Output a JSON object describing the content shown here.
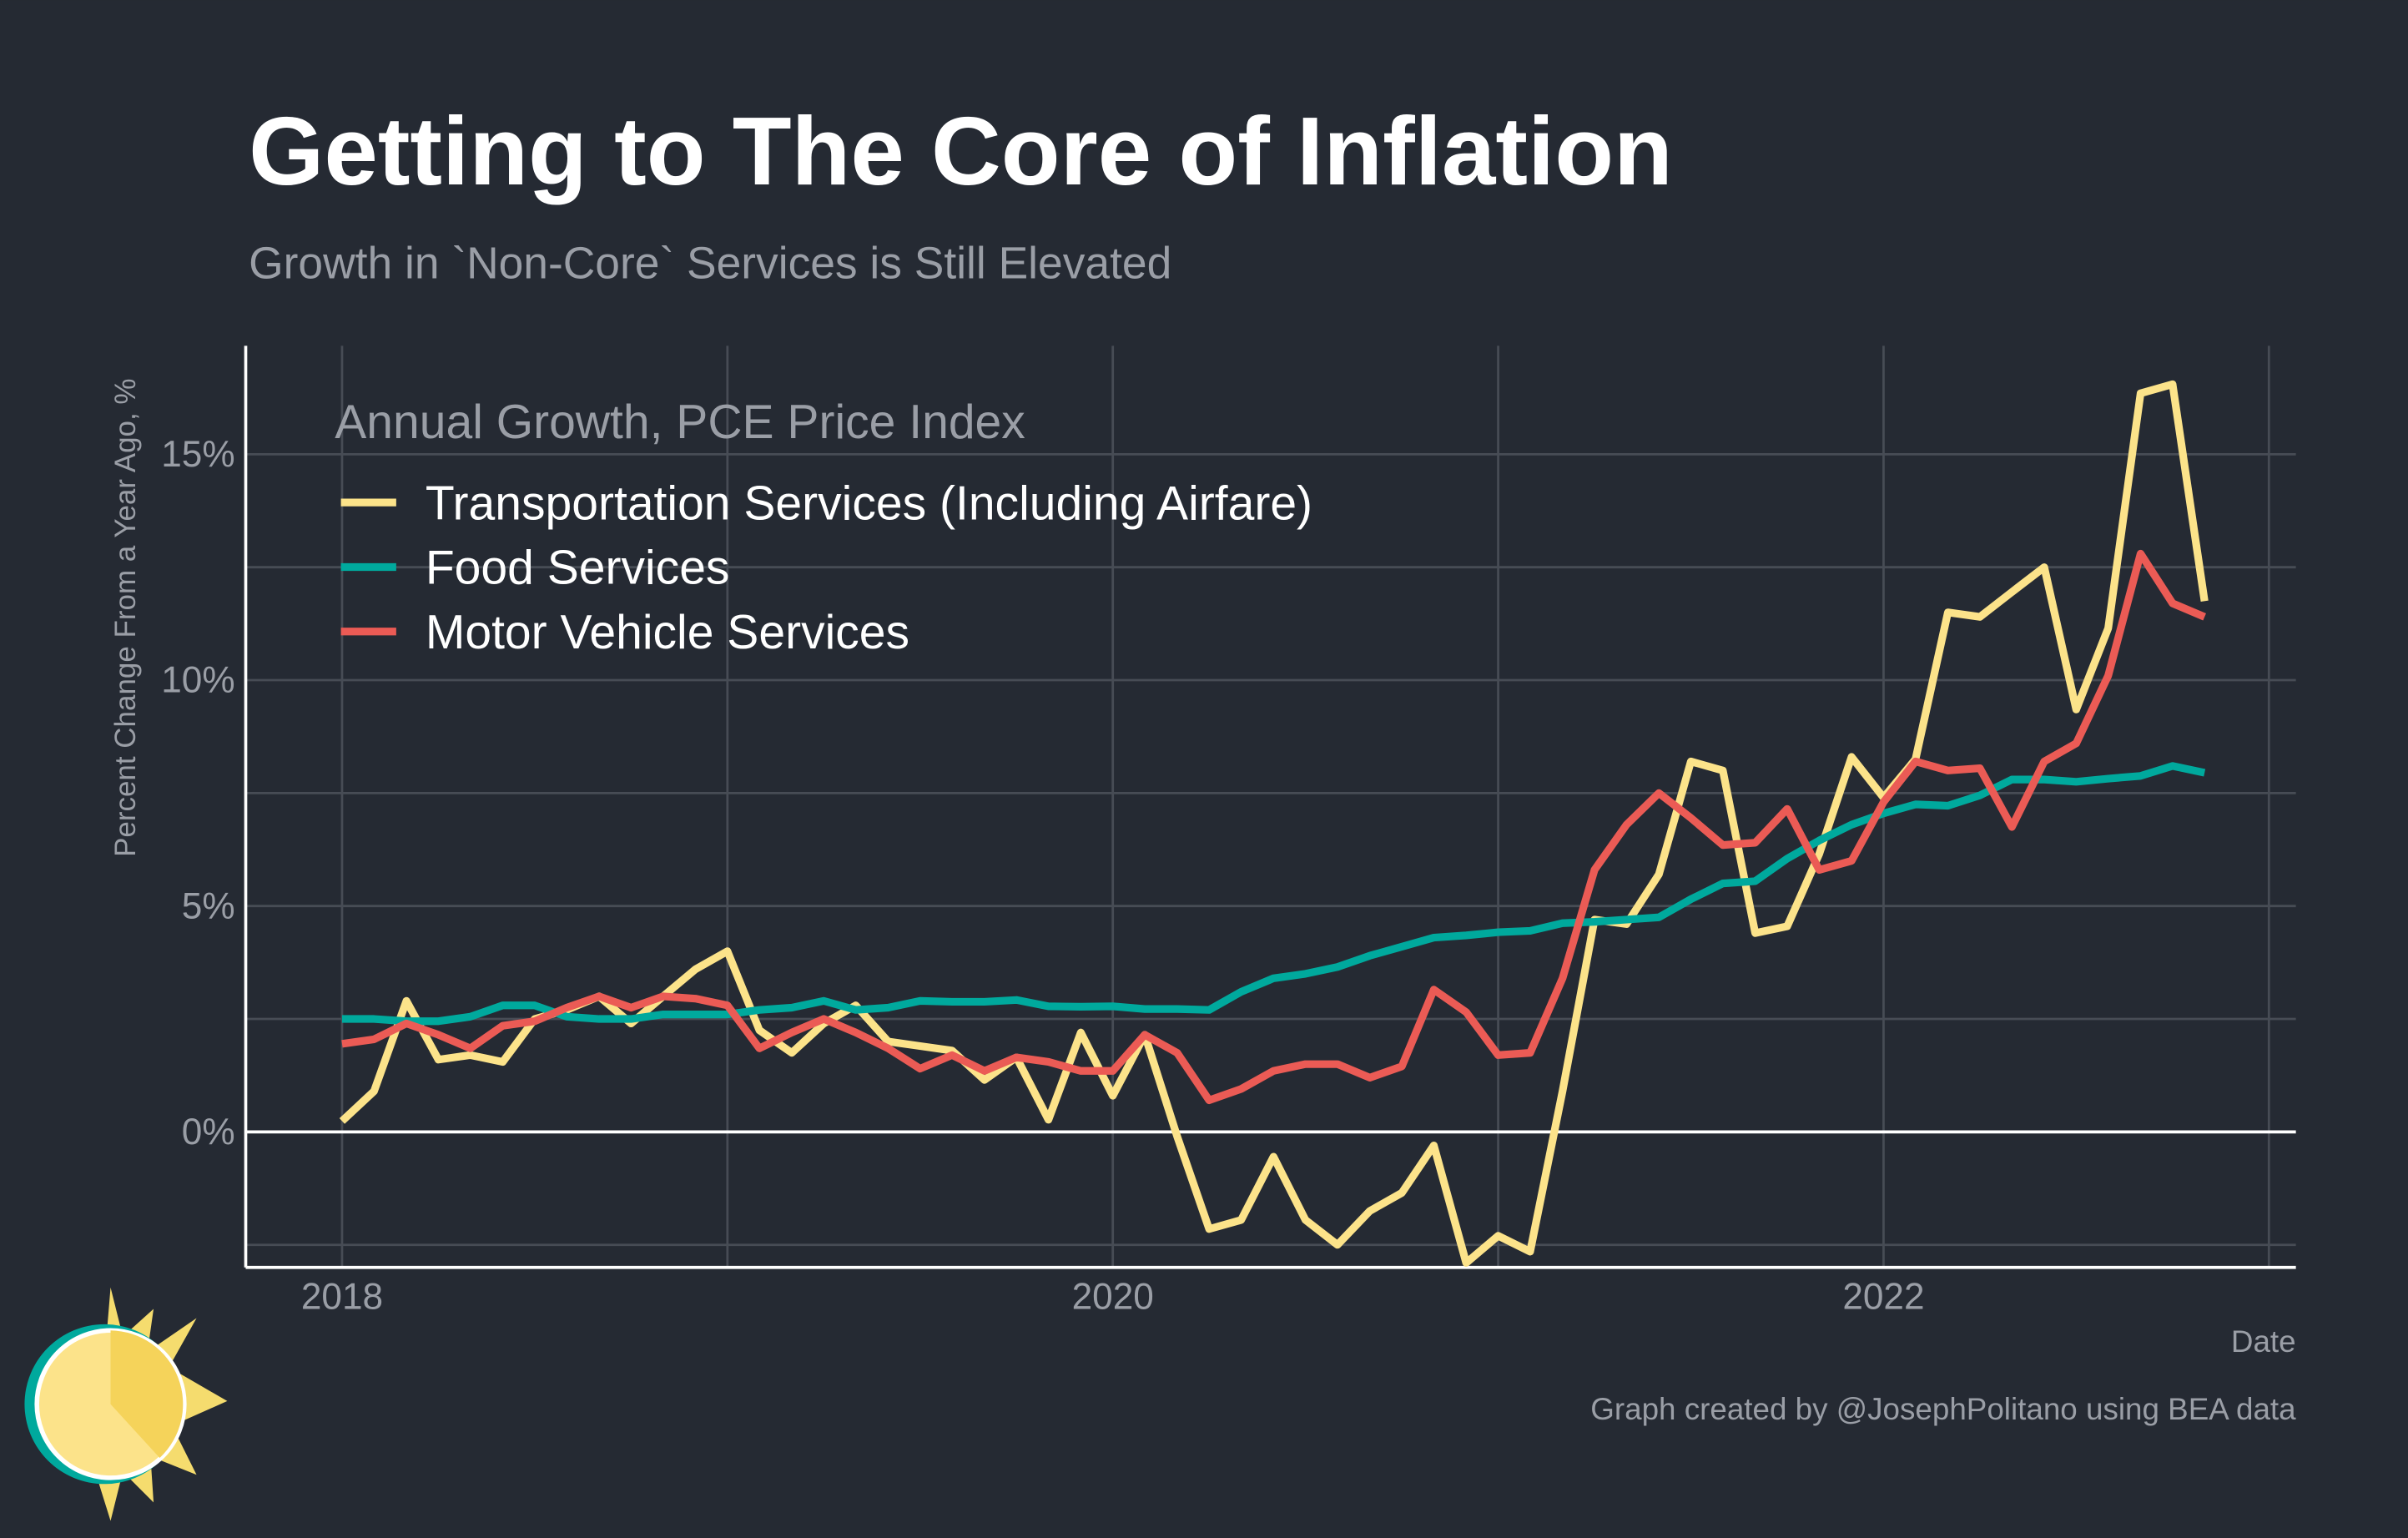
{
  "chart_data": {
    "type": "line",
    "title": "Getting to The Core of Inflation",
    "subtitle": "Growth in `Non-Core` Services is Still Elevated",
    "y_label": "Percent Change From a Year Ago, %",
    "x_label": "Date",
    "legend_title": "Annual Growth, PCE Price Index",
    "caption": "Graph created by @JosephPolitano using BEA data",
    "legend": "top-left",
    "grid": true,
    "x": [
      2018,
      2018.083,
      2018.167,
      2018.25,
      2018.333,
      2018.417,
      2018.5,
      2018.583,
      2018.667,
      2018.75,
      2018.833,
      2018.917,
      2019,
      2019.083,
      2019.167,
      2019.25,
      2019.333,
      2019.417,
      2019.5,
      2019.583,
      2019.667,
      2019.75,
      2019.833,
      2019.917,
      2020,
      2020.083,
      2020.167,
      2020.25,
      2020.333,
      2020.417,
      2020.5,
      2020.583,
      2020.667,
      2020.75,
      2020.833,
      2020.917,
      2021,
      2021.083,
      2021.167,
      2021.25,
      2021.333,
      2021.417,
      2021.5,
      2021.583,
      2021.667,
      2021.75,
      2021.833,
      2021.917,
      2022,
      2022.083,
      2022.167,
      2022.25,
      2022.333,
      2022.417,
      2022.5,
      2022.583,
      2022.667,
      2022.75,
      2022.833
    ],
    "series": [
      {
        "name": "Transportation Services (Including Airfare)",
        "color": "#fce38a",
        "values": [
          0.24,
          0.9,
          2.9,
          1.6,
          1.7,
          1.55,
          2.5,
          2.7,
          3.0,
          2.4,
          3.0,
          3.6,
          4.0,
          2.25,
          1.75,
          2.4,
          2.8,
          2.0,
          1.9,
          1.8,
          1.15,
          1.65,
          0.27,
          2.2,
          0.8,
          2.15,
          -0.1,
          -2.15,
          -1.95,
          -0.55,
          -1.95,
          -2.5,
          -1.75,
          -1.35,
          -0.3,
          -2.9,
          -2.3,
          -2.65,
          0.9,
          4.7,
          4.6,
          5.7,
          8.2,
          8.0,
          4.4,
          4.55,
          6.15,
          8.3,
          7.4,
          8.25,
          11.5,
          11.4,
          11.95,
          12.5,
          9.35,
          11.15,
          16.35,
          16.55,
          11.75
        ]
      },
      {
        "name": "Food Services",
        "color": "#00a99d",
        "values": [
          2.5,
          2.5,
          2.45,
          2.45,
          2.55,
          2.8,
          2.8,
          2.55,
          2.5,
          2.5,
          2.6,
          2.6,
          2.6,
          2.7,
          2.75,
          2.9,
          2.7,
          2.75,
          2.9,
          2.88,
          2.88,
          2.92,
          2.78,
          2.77,
          2.78,
          2.72,
          2.72,
          2.7,
          3.1,
          3.4,
          3.5,
          3.65,
          3.9,
          4.1,
          4.3,
          4.35,
          4.42,
          4.45,
          4.62,
          4.65,
          4.7,
          4.75,
          5.15,
          5.5,
          5.55,
          6.05,
          6.45,
          6.8,
          7.05,
          7.25,
          7.22,
          7.45,
          7.8,
          7.8,
          7.75,
          7.82,
          7.88,
          8.1,
          7.95
        ]
      },
      {
        "name": "Motor Vehicle Services",
        "color": "#eb5b55",
        "values": [
          1.95,
          2.05,
          2.4,
          2.15,
          1.85,
          2.35,
          2.45,
          2.75,
          3.0,
          2.75,
          3.0,
          2.95,
          2.8,
          1.85,
          2.2,
          2.5,
          2.2,
          1.85,
          1.4,
          1.7,
          1.35,
          1.65,
          1.55,
          1.35,
          1.35,
          2.15,
          1.75,
          0.7,
          0.95,
          1.35,
          1.5,
          1.5,
          1.2,
          1.45,
          3.15,
          2.65,
          1.7,
          1.75,
          3.4,
          5.8,
          6.8,
          7.5,
          6.95,
          6.35,
          6.4,
          7.15,
          5.8,
          6.0,
          7.3,
          8.2,
          8.0,
          8.05,
          6.75,
          8.2,
          8.6,
          10.1,
          12.8,
          11.7,
          11.4
        ]
      }
    ],
    "xlim": [
      2017.75,
      2023.07
    ],
    "xticks": [
      2018,
      2020,
      2022
    ],
    "x_minor_grid": [
      2019,
      2021,
      2023
    ],
    "ylim": [
      -3,
      17.4
    ],
    "yticks": [
      {
        "value": 0,
        "label": "0%"
      },
      {
        "value": 5,
        "label": "5%"
      },
      {
        "value": 10,
        "label": "10%"
      },
      {
        "value": 15,
        "label": "15%"
      }
    ],
    "y_minor_grid": [
      -2.5,
      2.5,
      7.5,
      12.5
    ],
    "reference_line": 0
  }
}
